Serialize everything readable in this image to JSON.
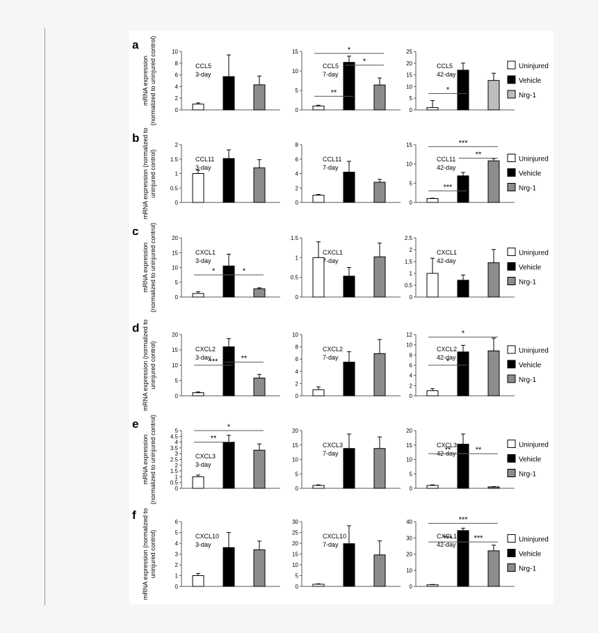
{
  "figure": {
    "legend": [
      "Uninjured",
      "Vehicle",
      "Nrg-1"
    ],
    "colors": {
      "uninjured": "#ffffff",
      "vehicle": "#000000",
      "nrg1": "#8c8c8c",
      "nrg1_light": "#bdbdbd",
      "axis": "#555555"
    }
  },
  "chart_data": [
    {
      "panel": "a",
      "type": "bar",
      "ylabel": [
        "mRNA expression",
        "(normalized to uninjured control)"
      ],
      "charts": [
        {
          "label": [
            "CCL5",
            "3-day"
          ],
          "ylim": [
            0,
            10
          ],
          "yticks": [
            0,
            2,
            4,
            6,
            8,
            10
          ],
          "values": [
            1.0,
            5.7,
            4.3
          ],
          "errors": [
            0.2,
            3.7,
            1.5
          ],
          "sig": []
        },
        {
          "label": [
            "CCL5",
            "7-day"
          ],
          "ylim": [
            0,
            15
          ],
          "yticks": [
            0,
            5,
            10,
            15
          ],
          "values": [
            1.0,
            12.2,
            6.4
          ],
          "errors": [
            0.2,
            1.6,
            1.8
          ],
          "sig": [
            {
              "from": 0,
              "to": 2,
              "y": 14.5,
              "text": "*"
            },
            {
              "from": 0,
              "to": 1,
              "y": 3.5,
              "text": "**"
            },
            {
              "from": 1,
              "to": 2,
              "y": 11.5,
              "text": "*"
            }
          ]
        },
        {
          "label": [
            "CCL5",
            "42-day"
          ],
          "ylim": [
            0,
            25
          ],
          "yticks": [
            0,
            5,
            10,
            15,
            20,
            25
          ],
          "values": [
            1.0,
            17.0,
            12.6
          ],
          "errors": [
            3.0,
            3.0,
            3.1
          ],
          "sig": [
            {
              "from": 0,
              "to": 1,
              "y": 7.0,
              "text": "*"
            }
          ]
        }
      ]
    },
    {
      "panel": "b",
      "type": "bar",
      "ylabel": [
        "mRNA expression (normalized to",
        "uninjured control)"
      ],
      "charts": [
        {
          "label": [
            "CCL11",
            "3-day"
          ],
          "ylim": [
            0,
            2
          ],
          "yticks": [
            0,
            0.5,
            1,
            1.5,
            2
          ],
          "values": [
            1.0,
            1.52,
            1.2
          ],
          "errors": [
            0.12,
            0.3,
            0.28
          ],
          "sig": []
        },
        {
          "label": [
            "CCL11",
            "7-day"
          ],
          "ylim": [
            0,
            8
          ],
          "yticks": [
            0,
            2,
            4,
            6,
            8
          ],
          "values": [
            1.0,
            4.2,
            2.8
          ],
          "errors": [
            0.1,
            1.5,
            0.4
          ],
          "sig": []
        },
        {
          "label": [
            "CCL11",
            "42-day"
          ],
          "ylim": [
            0,
            15
          ],
          "yticks": [
            0,
            5,
            10,
            15
          ],
          "values": [
            1.0,
            6.9,
            10.8
          ],
          "errors": [
            0.1,
            0.9,
            0.6
          ],
          "sig": [
            {
              "from": 0,
              "to": 2,
              "y": 14.5,
              "text": "***"
            },
            {
              "from": 0,
              "to": 1,
              "y": 3.0,
              "text": "***"
            },
            {
              "from": 1,
              "to": 2,
              "y": 11.5,
              "text": "**"
            }
          ]
        }
      ]
    },
    {
      "panel": "c",
      "type": "bar",
      "ylabel": [
        "mRNA expression",
        "(normalized to uninjured control)"
      ],
      "charts": [
        {
          "label": [
            "CXCL1",
            "3-day"
          ],
          "ylim": [
            0,
            20
          ],
          "yticks": [
            0,
            5,
            10,
            15,
            20
          ],
          "values": [
            1.2,
            10.5,
            2.8
          ],
          "errors": [
            0.6,
            4.0,
            0.3
          ],
          "sig": [
            {
              "from": 0,
              "to": 1,
              "y": 7.5,
              "text": "*"
            },
            {
              "from": 1,
              "to": 2,
              "y": 7.5,
              "text": "*"
            }
          ]
        },
        {
          "label": [
            "CXCL1",
            "7-day"
          ],
          "ylim": [
            0,
            1.5
          ],
          "yticks": [
            0,
            0.5,
            1,
            1.5
          ],
          "values": [
            1.0,
            0.53,
            1.02
          ],
          "errors": [
            0.4,
            0.22,
            0.35
          ],
          "sig": []
        },
        {
          "label": [
            "CXCL1",
            "42-day"
          ],
          "ylim": [
            0,
            2.5
          ],
          "yticks": [
            0,
            0.5,
            1,
            1.5,
            2,
            2.5
          ],
          "values": [
            1.0,
            0.71,
            1.45
          ],
          "errors": [
            0.64,
            0.22,
            0.56
          ],
          "sig": []
        }
      ]
    },
    {
      "panel": "d",
      "type": "bar",
      "ylabel": [
        "mRNA expression (normalized to",
        "uninjured control)"
      ],
      "charts": [
        {
          "label": [
            "CXCL2",
            "3-day"
          ],
          "ylim": [
            0,
            20
          ],
          "yticks": [
            0,
            5,
            10,
            15,
            20
          ],
          "values": [
            1.0,
            16.0,
            5.8
          ],
          "errors": [
            0.3,
            2.7,
            1.2
          ],
          "sig": [
            {
              "from": 0,
              "to": 1,
              "y": 10.0,
              "text": "***"
            },
            {
              "from": 1,
              "to": 2,
              "y": 11.0,
              "text": "**"
            }
          ]
        },
        {
          "label": [
            "CXCL2",
            "7-day"
          ],
          "ylim": [
            0,
            10
          ],
          "yticks": [
            0,
            2,
            4,
            6,
            8,
            10
          ],
          "values": [
            1.0,
            5.5,
            6.9
          ],
          "errors": [
            0.45,
            1.7,
            2.3
          ],
          "sig": []
        },
        {
          "label": [
            "CXCL2",
            "42-day"
          ],
          "ylim": [
            0,
            12
          ],
          "yticks": [
            0,
            2,
            4,
            6,
            8,
            10,
            12
          ],
          "values": [
            1.0,
            8.6,
            8.8
          ],
          "errors": [
            0.4,
            1.3,
            2.5
          ],
          "sig": [
            {
              "from": 0,
              "to": 2,
              "y": 11.5,
              "text": "*"
            },
            {
              "from": 0,
              "to": 1,
              "y": 6.0,
              "text": "*"
            }
          ]
        }
      ]
    },
    {
      "panel": "e",
      "type": "bar",
      "ylabel": [
        "mRNA expression",
        "(normalized to uninjured control)"
      ],
      "charts": [
        {
          "label": [
            "CXCL3",
            "3-day"
          ],
          "ylim": [
            0,
            5
          ],
          "yticks": [
            0,
            0.5,
            1,
            1.5,
            2,
            2.5,
            3,
            3.5,
            4,
            4.5,
            5
          ],
          "values": [
            1.0,
            4.0,
            3.3
          ],
          "errors": [
            0.15,
            0.6,
            0.55
          ],
          "sig": [
            {
              "from": 0,
              "to": 2,
              "y": 5.0,
              "text": "*"
            },
            {
              "from": 0,
              "to": 1,
              "y": 4.0,
              "text": "**"
            }
          ]
        },
        {
          "label": [
            "CXCL3",
            "7-day"
          ],
          "ylim": [
            0,
            20
          ],
          "yticks": [
            0,
            5,
            10,
            15,
            20
          ],
          "values": [
            1.0,
            13.8,
            13.8
          ],
          "errors": [
            0.2,
            5.0,
            4.0
          ],
          "sig": []
        },
        {
          "label": [
            "CXCL3",
            "42-day"
          ],
          "ylim": [
            0,
            20
          ],
          "yticks": [
            0,
            5,
            10,
            15,
            20
          ],
          "values": [
            1.0,
            15.3,
            0.5
          ],
          "errors": [
            0.2,
            3.5,
            0.1
          ],
          "sig": [
            {
              "from": 0,
              "to": 1,
              "y": 12.0,
              "text": "**"
            },
            {
              "from": 1,
              "to": 2,
              "y": 12.0,
              "text": "**"
            }
          ]
        }
      ]
    },
    {
      "panel": "f",
      "type": "bar",
      "ylabel": [
        "mRNA expression (normalized to",
        "uninjured control)"
      ],
      "charts": [
        {
          "label": [
            "CXCL10",
            "3-day"
          ],
          "ylim": [
            0,
            6
          ],
          "yticks": [
            0,
            1,
            2,
            3,
            4,
            5,
            6
          ],
          "values": [
            1.0,
            3.6,
            3.4
          ],
          "errors": [
            0.2,
            1.4,
            0.8
          ],
          "sig": []
        },
        {
          "label": [
            "CXCL10",
            "7-day"
          ],
          "ylim": [
            0,
            30
          ],
          "yticks": [
            0,
            5,
            10,
            15,
            20,
            25,
            30
          ],
          "values": [
            1.0,
            19.8,
            14.6
          ],
          "errors": [
            0.2,
            8.3,
            6.5
          ],
          "sig": []
        },
        {
          "label": [
            "CXCL10",
            "42-day"
          ],
          "ylim": [
            0,
            40
          ],
          "yticks": [
            0,
            10,
            20,
            30,
            40
          ],
          "values": [
            1.0,
            34.5,
            22.0
          ],
          "errors": [
            0.2,
            1.5,
            3.5
          ],
          "sig": [
            {
              "from": 0,
              "to": 2,
              "y": 39.0,
              "text": "***"
            },
            {
              "from": 0,
              "to": 1,
              "y": 27.5,
              "text": "***"
            },
            {
              "from": 1,
              "to": 2,
              "y": 27.5,
              "text": "***"
            }
          ]
        }
      ]
    }
  ]
}
